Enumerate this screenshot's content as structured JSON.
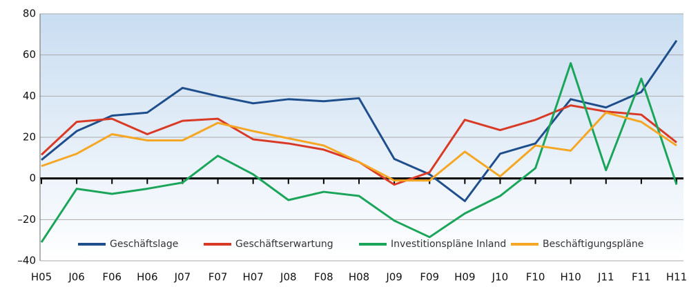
{
  "chart_data": {
    "type": "line",
    "categories": [
      "H05",
      "J06",
      "F06",
      "H06",
      "J07",
      "F07",
      "H07",
      "J08",
      "F08",
      "H08",
      "J09",
      "F09",
      "H09",
      "J10",
      "F10",
      "H10",
      "J11",
      "F11",
      "H11"
    ],
    "series": [
      {
        "name": "Geschäftslage",
        "color": "#1f4e8c",
        "values": [
          9,
          23,
          30.5,
          32,
          44,
          40,
          36.5,
          38.5,
          37.5,
          39,
          9.5,
          2,
          -11,
          12,
          17,
          38.5,
          34.5,
          42,
          67
        ]
      },
      {
        "name": "Geschäftserwartung",
        "color": "#d93a26",
        "values": [
          11.5,
          27.5,
          29,
          21.5,
          28,
          29,
          19,
          17,
          14,
          8,
          -3,
          3,
          28.5,
          23.5,
          28.5,
          35.5,
          32.5,
          31,
          17.5
        ]
      },
      {
        "name": "Investitionspläne Inland",
        "color": "#1aa55a",
        "values": [
          -31,
          -5,
          -7.5,
          -5,
          -2,
          11,
          2,
          -10.5,
          -6.5,
          -8.5,
          -20.5,
          -28.5,
          -17,
          -8.5,
          5,
          56,
          4,
          48.5,
          -3
        ]
      },
      {
        "name": "Beschäftigungspläne",
        "color": "#f5a623",
        "values": [
          6,
          12,
          21.5,
          18.5,
          18.5,
          27,
          23,
          19.5,
          16,
          8,
          -1,
          -1,
          13,
          1,
          16,
          13.5,
          32,
          27.5,
          16
        ]
      }
    ],
    "ylim": [
      -40,
      80
    ],
    "yticks": [
      {
        "value": -40,
        "label": "–40"
      },
      {
        "value": -20,
        "label": "–20"
      },
      0,
      20,
      40,
      60,
      80
    ],
    "grid": true,
    "legend": "bottom"
  }
}
